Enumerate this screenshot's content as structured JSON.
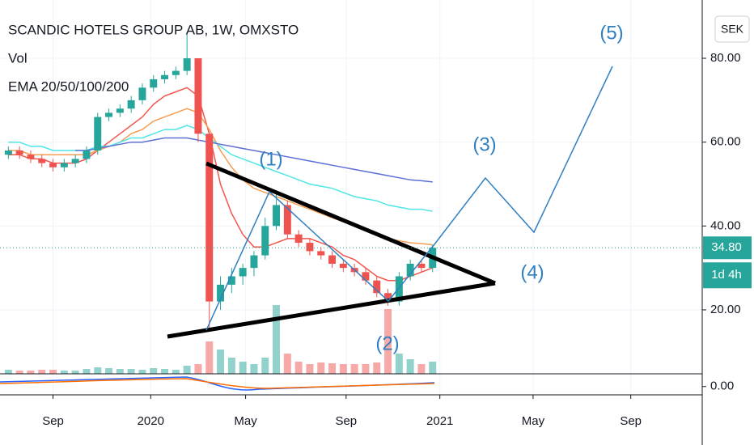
{
  "header": {
    "title": "SCANDIC HOTELS GROUP AB, 1W, OMXSTO",
    "vol": "Vol",
    "ema": "EMA 20/50/100/200"
  },
  "chart_data": {
    "type": "candlestick",
    "x": [
      1,
      3,
      5,
      7,
      9,
      11,
      13,
      15,
      17,
      19,
      21,
      23,
      25,
      27,
      29,
      31,
      33,
      35,
      37,
      39,
      41,
      43,
      45,
      47,
      49,
      51,
      53,
      55,
      57,
      59,
      61,
      63,
      65,
      67,
      69,
      71,
      73,
      75,
      77
    ],
    "open": [
      57,
      58,
      57,
      56,
      55,
      54,
      55,
      56,
      58,
      66,
      67,
      68,
      70,
      73,
      75,
      76,
      77,
      80,
      62,
      22,
      26,
      28,
      30,
      33,
      40,
      45,
      38,
      36,
      34,
      33,
      31,
      30,
      29,
      27,
      24,
      22,
      28,
      31,
      30
    ],
    "high": [
      59,
      59,
      58,
      57,
      56,
      56,
      57,
      59,
      67,
      68,
      69,
      71,
      74,
      76,
      77,
      78,
      86,
      80,
      62,
      28,
      30,
      31,
      34,
      42,
      48,
      46,
      39,
      37,
      35,
      34,
      32,
      31,
      30,
      28,
      25,
      29,
      32,
      32,
      35.5
    ],
    "low": [
      56,
      56,
      55,
      54,
      53,
      53,
      54,
      55,
      57,
      65,
      66,
      67,
      69,
      72,
      74,
      75,
      76,
      60,
      15,
      20,
      24,
      26,
      28,
      32,
      39,
      37,
      35,
      33,
      32,
      30,
      29,
      28,
      26,
      23,
      21,
      21,
      27,
      29,
      29
    ],
    "close": [
      58,
      57,
      56,
      55,
      54,
      55,
      56,
      58,
      66,
      67,
      68,
      70,
      73,
      75,
      76,
      77,
      80,
      62,
      22,
      26,
      28,
      30,
      33,
      40,
      45,
      38,
      36,
      34,
      33,
      31,
      30,
      29,
      27,
      24,
      22,
      28,
      31,
      30,
      34.8
    ],
    "volume": [
      5,
      4,
      4,
      5,
      5,
      4,
      4,
      6,
      8,
      7,
      6,
      6,
      5,
      7,
      6,
      5,
      10,
      12,
      40,
      30,
      20,
      15,
      12,
      20,
      85,
      25,
      15,
      12,
      14,
      13,
      12,
      12,
      12,
      14,
      80,
      25,
      18,
      12,
      15
    ],
    "up_color": "#26a69a",
    "down_color": "#ef5350",
    "overlays": [
      {
        "color": "#f2554a",
        "values": [
          57,
          57,
          56,
          56,
          55,
          55,
          55,
          56,
          58,
          60,
          62,
          64,
          66,
          69,
          71,
          72,
          73,
          71,
          62,
          50,
          43,
          38,
          35,
          35,
          36,
          37,
          37,
          37,
          36,
          35,
          33,
          32,
          30,
          28,
          27,
          27,
          28,
          29,
          30
        ]
      },
      {
        "color": "#f59d52",
        "values": [
          58,
          58,
          57,
          57,
          57,
          57,
          57,
          57,
          58,
          59,
          60,
          62,
          63,
          65,
          66,
          67,
          68,
          67,
          63,
          58,
          54,
          51,
          49,
          48,
          47,
          46,
          45,
          44,
          43,
          42,
          41,
          40,
          39,
          38,
          37,
          36.5,
          36,
          35.8,
          35.5
        ]
      },
      {
        "color": "#4ee6e6",
        "values": [
          60,
          60,
          59,
          59,
          58,
          58,
          58,
          58,
          59,
          59,
          60,
          61,
          61,
          62,
          63,
          63,
          64,
          63,
          61,
          59,
          57,
          56,
          55,
          54,
          53,
          52,
          51,
          50,
          49.5,
          49,
          48,
          47,
          46.5,
          46,
          45,
          44.5,
          44,
          44,
          43.5
        ]
      },
      {
        "color": "#5b6fd6",
        "values": [
          null,
          null,
          null,
          null,
          null,
          null,
          58,
          58,
          58.5,
          59,
          59.5,
          60,
          60,
          60.5,
          61,
          61,
          61,
          60.5,
          60,
          59.5,
          59,
          58.5,
          58,
          57.5,
          57,
          56.5,
          56,
          55.5,
          55,
          54.5,
          54,
          53.5,
          53,
          52.5,
          52,
          51.5,
          51,
          50.8,
          50.5
        ]
      }
    ],
    "xlim": [
      -0.5,
      125.3
    ],
    "ylim": [
      4.75,
      93.9
    ],
    "xticks": [
      {
        "value": 9,
        "label": "Sep"
      },
      {
        "value": 26.5,
        "label": "2020"
      },
      {
        "value": 43.5,
        "label": "May"
      },
      {
        "value": 61.5,
        "label": "Sep"
      },
      {
        "value": 78.3,
        "label": "2021"
      },
      {
        "value": 95,
        "label": "May"
      },
      {
        "value": 112.5,
        "label": "Sep"
      }
    ],
    "yticks": [
      {
        "value": 80,
        "label": "80.00"
      },
      {
        "value": 60,
        "label": "60.00"
      },
      {
        "value": 40,
        "label": "40.00"
      },
      {
        "value": 20,
        "label": "20.00"
      }
    ],
    "grid": true,
    "currency": "SEK",
    "price_label": "34.80",
    "countdown": "1d 4h",
    "annotations": [
      "(1)",
      "(2)",
      "(3)",
      "(4)",
      "(5)"
    ],
    "indicator": {
      "ylim": [
        -1.5,
        2.3
      ],
      "yticks": [
        {
          "value": 0,
          "label": "0.00"
        }
      ]
    }
  }
}
